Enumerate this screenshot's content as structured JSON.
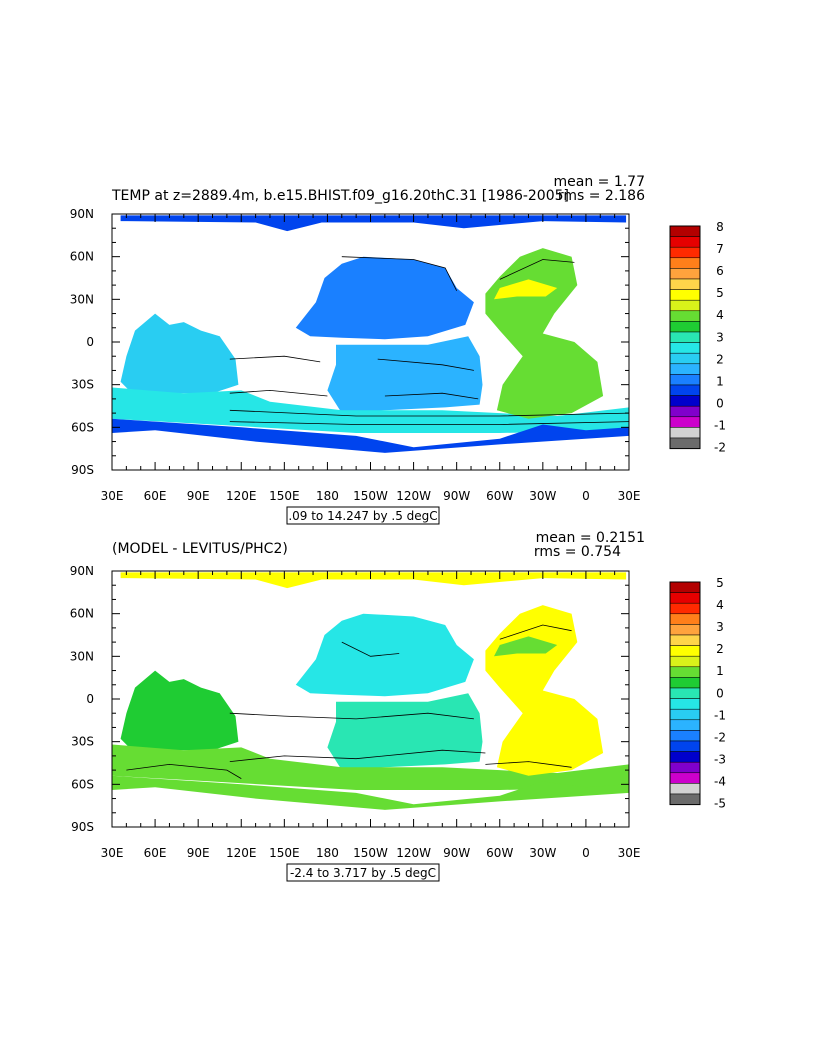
{
  "chart_data": [
    {
      "type": "heatmap",
      "title": "TEMP at z=2889.4m, b.e15.BHIST.f09_g16.20thC.31 [1986-2005]",
      "stats": {
        "mean": "mean = 1.77",
        "rms": "rms = 2.186"
      },
      "x_ticks": [
        "30E",
        "60E",
        "90E",
        "120E",
        "150E",
        "180",
        "150W",
        "120W",
        "90W",
        "60W",
        "30W",
        "0",
        "30E"
      ],
      "y_ticks": [
        "90N",
        "60N",
        "30N",
        "0",
        "30S",
        "60S",
        "90S"
      ],
      "xlim": [
        30,
        390
      ],
      "ylim": [
        -90,
        90
      ],
      "contour_info": ".09 to 14.247 by .5 degC",
      "colorbar": {
        "labels": [
          "8",
          "7",
          "6",
          "5",
          "4",
          "3",
          "2",
          "1",
          "0",
          "-1",
          "-2"
        ],
        "colors": [
          "#b30000",
          "#e60000",
          "#ff2a00",
          "#ff7f1a",
          "#ffa33d",
          "#ffd54a",
          "#ffff00",
          "#d9f21a",
          "#66dd33",
          "#1fcc33",
          "#29e6b3",
          "#26e6e6",
          "#29cdf2",
          "#2bb3ff",
          "#1a80ff",
          "#0044ee",
          "#0000cc",
          "#8000cc",
          "#cc00cc",
          "#d2d2d2",
          "#6b6b6b"
        ]
      },
      "regions": [
        {
          "name": "pacific-north",
          "color": "#1a80ff"
        },
        {
          "name": "pacific-south",
          "color": "#2bb3ff"
        },
        {
          "name": "indian",
          "color": "#29cdf2"
        },
        {
          "name": "southern",
          "color": "#26e6e6"
        },
        {
          "name": "antarctic",
          "color": "#0044ee"
        },
        {
          "name": "atlantic",
          "color": "#66dd33"
        },
        {
          "name": "arctic",
          "color": "#0044ee"
        },
        {
          "name": "med",
          "color": "#ffff00"
        }
      ]
    },
    {
      "type": "heatmap",
      "title": "(MODEL - LEVITUS/PHC2)",
      "stats": {
        "mean": "mean = 0.2151",
        "rms": "rms = 0.754"
      },
      "x_ticks": [
        "30E",
        "60E",
        "90E",
        "120E",
        "150E",
        "180",
        "150W",
        "120W",
        "90W",
        "60W",
        "30W",
        "0",
        "30E"
      ],
      "y_ticks": [
        "90N",
        "60N",
        "30N",
        "0",
        "30S",
        "60S",
        "90S"
      ],
      "xlim": [
        30,
        390
      ],
      "ylim": [
        -90,
        90
      ],
      "contour_info": "-2.4 to 3.717 by .5 degC",
      "colorbar": {
        "labels": [
          "5",
          "4",
          "3",
          "2",
          "1",
          "0",
          "-1",
          "-2",
          "-3",
          "-4",
          "-5"
        ],
        "colors": [
          "#b30000",
          "#e60000",
          "#ff2a00",
          "#ff7f1a",
          "#ffa33d",
          "#ffd54a",
          "#ffff00",
          "#d9f21a",
          "#66dd33",
          "#1fcc33",
          "#29e6b3",
          "#26e6e6",
          "#29cdf2",
          "#2bb3ff",
          "#1a80ff",
          "#0044ee",
          "#0000cc",
          "#8000cc",
          "#cc00cc",
          "#d2d2d2",
          "#6b6b6b"
        ]
      },
      "regions": [
        {
          "name": "pacific-north",
          "color": "#26e6e6"
        },
        {
          "name": "pacific-south",
          "color": "#29e6b3"
        },
        {
          "name": "indian",
          "color": "#1fcc33"
        },
        {
          "name": "southern",
          "color": "#66dd33"
        },
        {
          "name": "antarctic",
          "color": "#66dd33"
        },
        {
          "name": "atlantic",
          "color": "#ffff00"
        },
        {
          "name": "arctic",
          "color": "#ffff00"
        },
        {
          "name": "med",
          "color": "#66dd33"
        }
      ]
    }
  ]
}
